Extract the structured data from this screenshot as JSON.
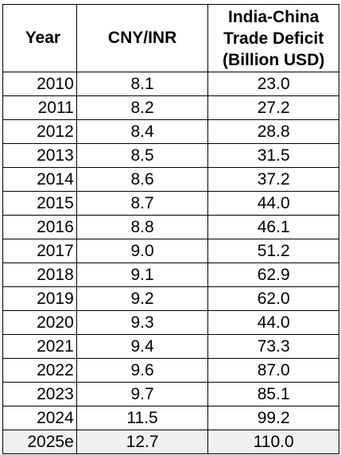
{
  "chart_data": {
    "type": "table",
    "columns": [
      "Year",
      "CNY/INR",
      "India-China\nTrade Deficit\n(Billion USD)"
    ],
    "rows": [
      [
        "2010",
        "8.1",
        "23.0"
      ],
      [
        "2011",
        "8.2",
        "27.2"
      ],
      [
        "2012",
        "8.4",
        "28.8"
      ],
      [
        "2013",
        "8.5",
        "31.5"
      ],
      [
        "2014",
        "8.6",
        "37.2"
      ],
      [
        "2015",
        "8.7",
        "44.0"
      ],
      [
        "2016",
        "8.8",
        "46.1"
      ],
      [
        "2017",
        "9.0",
        "51.2"
      ],
      [
        "2018",
        "9.1",
        "62.9"
      ],
      [
        "2019",
        "9.2",
        "62.0"
      ],
      [
        "2020",
        "9.3",
        "44.0"
      ],
      [
        "2021",
        "9.4",
        "73.3"
      ],
      [
        "2022",
        "9.6",
        "87.0"
      ],
      [
        "2023",
        "9.7",
        "85.1"
      ],
      [
        "2024",
        "11.5",
        "99.2"
      ],
      [
        "2025e",
        "12.7",
        "110.0"
      ]
    ],
    "highlighted_row_color": "#f0f0f0"
  }
}
